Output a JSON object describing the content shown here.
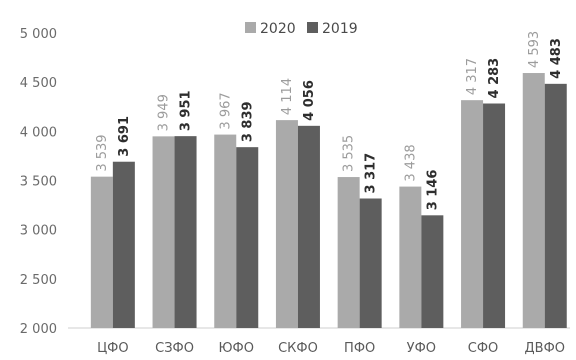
{
  "chart_data": {
    "type": "bar",
    "title": "",
    "xlabel": "",
    "ylabel": "",
    "categories": [
      "ЦФО",
      "СЗФО",
      "ЮФО",
      "СКФО",
      "ПФО",
      "УФО",
      "СФО",
      "ДВФО"
    ],
    "series": [
      {
        "name": "2020",
        "values": [
          3539,
          3949,
          3967,
          4114,
          3535,
          3438,
          4317,
          4593
        ],
        "labels": [
          "3 539",
          "3 949",
          "3 967",
          "4 114",
          "3 535",
          "3 438",
          "4 317",
          "4 593"
        ],
        "color": "#aaaaaa"
      },
      {
        "name": "2019",
        "values": [
          3691,
          3951,
          3839,
          4056,
          3317,
          3146,
          4283,
          4483
        ],
        "labels": [
          "3 691",
          "3 951",
          "3 839",
          "4 056",
          "3 317",
          "3 146",
          "4 283",
          "4 483"
        ],
        "color": "#5e5e5e"
      }
    ],
    "ylim": [
      2000,
      5000
    ],
    "yticks": [
      2000,
      2500,
      3000,
      3500,
      4000,
      4500,
      5000
    ],
    "ytick_labels": [
      "2 000",
      "2 500",
      "3 000",
      "3 500",
      "4 000",
      "4 500",
      "5 000"
    ],
    "grid": false,
    "legend_position": "top-center"
  }
}
